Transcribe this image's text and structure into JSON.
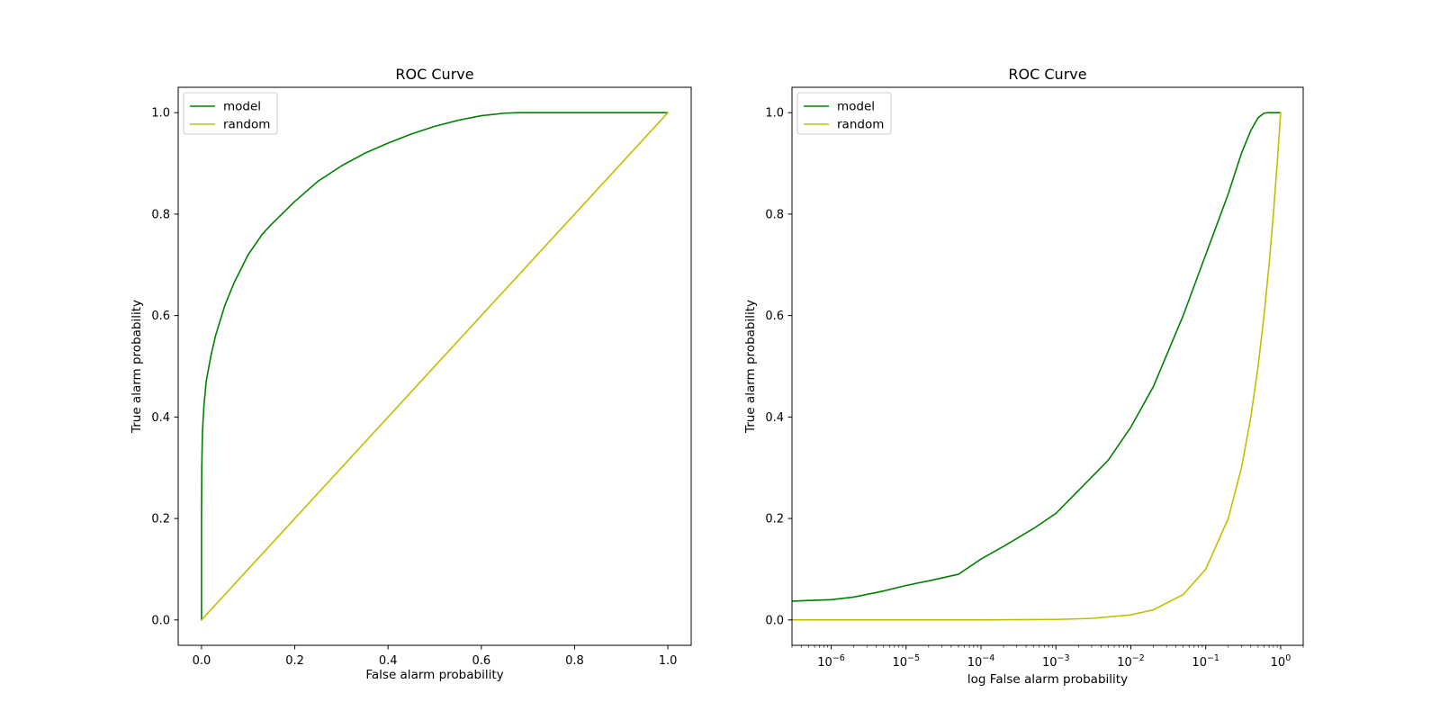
{
  "figure": {
    "background": "#ffffff"
  },
  "colors": {
    "model": "#008000",
    "random": "#bfbf00",
    "axis": "#000000"
  },
  "chart_data": [
    {
      "type": "line",
      "title": "ROC Curve",
      "xlabel": "False alarm probability",
      "ylabel": "True alarm probability",
      "xscale": "linear",
      "xlim": [
        -0.05,
        1.05
      ],
      "ylim": [
        -0.05,
        1.05
      ],
      "xticks": [
        0.0,
        0.2,
        0.4,
        0.6,
        0.8,
        1.0
      ],
      "xtick_labels": [
        "0.0",
        "0.2",
        "0.4",
        "0.6",
        "0.8",
        "1.0"
      ],
      "yticks": [
        0.0,
        0.2,
        0.4,
        0.6,
        0.8,
        1.0
      ],
      "ytick_labels": [
        "0.0",
        "0.2",
        "0.4",
        "0.6",
        "0.8",
        "1.0"
      ],
      "legend": "top-left",
      "grid": false,
      "series": [
        {
          "name": "model",
          "color": "#008000",
          "x": [
            0.0,
            0.0,
            0.0005,
            0.002,
            0.005,
            0.01,
            0.02,
            0.03,
            0.05,
            0.07,
            0.1,
            0.13,
            0.15,
            0.2,
            0.25,
            0.3,
            0.35,
            0.4,
            0.45,
            0.5,
            0.55,
            0.6,
            0.65,
            0.68,
            0.7,
            0.8,
            0.9,
            1.0
          ],
          "y": [
            0.0,
            0.2,
            0.3,
            0.37,
            0.42,
            0.47,
            0.52,
            0.56,
            0.62,
            0.665,
            0.72,
            0.76,
            0.78,
            0.825,
            0.865,
            0.895,
            0.92,
            0.94,
            0.958,
            0.973,
            0.985,
            0.994,
            0.999,
            1.0,
            1.0,
            1.0,
            1.0,
            1.0
          ]
        },
        {
          "name": "random",
          "color": "#bfbf00",
          "x": [
            0.0,
            1.0
          ],
          "y": [
            0.0,
            1.0
          ]
        }
      ]
    },
    {
      "type": "line",
      "title": "ROC Curve",
      "xlabel": "log False alarm probability",
      "ylabel": "True alarm probability",
      "xscale": "log",
      "xlim": [
        3e-07,
        2.0
      ],
      "ylim": [
        -0.05,
        1.05
      ],
      "xticks": [
        1e-06,
        1e-05,
        0.0001,
        0.001,
        0.01,
        0.1,
        1
      ],
      "xtick_labels": [
        "10^-6",
        "10^-5",
        "10^-4",
        "10^-3",
        "10^-2",
        "10^-1",
        "10^0"
      ],
      "yticks": [
        0.0,
        0.2,
        0.4,
        0.6,
        0.8,
        1.0
      ],
      "ytick_labels": [
        "0.0",
        "0.2",
        "0.4",
        "0.6",
        "0.8",
        "1.0"
      ],
      "legend": "top-left",
      "grid": false,
      "series": [
        {
          "name": "model",
          "color": "#008000",
          "x": [
            3e-07,
            1e-06,
            2e-06,
            5e-06,
            1e-05,
            2e-05,
            5e-05,
            0.0001,
            0.0002,
            0.0005,
            0.001,
            0.002,
            0.005,
            0.01,
            0.02,
            0.05,
            0.1,
            0.2,
            0.3,
            0.4,
            0.5,
            0.6,
            0.68,
            0.8,
            1.0
          ],
          "y": [
            0.037,
            0.04,
            0.045,
            0.057,
            0.068,
            0.077,
            0.09,
            0.12,
            0.145,
            0.18,
            0.21,
            0.255,
            0.315,
            0.38,
            0.46,
            0.6,
            0.72,
            0.84,
            0.92,
            0.965,
            0.99,
            0.999,
            1.0,
            1.0,
            1.0
          ]
        },
        {
          "name": "random",
          "color": "#bfbf00",
          "x": [
            3e-07,
            1e-06,
            1e-05,
            0.0001,
            0.001,
            0.003,
            0.01,
            0.02,
            0.05,
            0.1,
            0.2,
            0.3,
            0.4,
            0.5,
            0.6,
            0.7,
            0.8,
            0.9,
            1.0
          ],
          "y": [
            0.0,
            0.0,
            0.0,
            0.0,
            0.001,
            0.003,
            0.01,
            0.02,
            0.05,
            0.1,
            0.2,
            0.3,
            0.4,
            0.5,
            0.6,
            0.7,
            0.8,
            0.9,
            1.0
          ]
        }
      ]
    }
  ]
}
